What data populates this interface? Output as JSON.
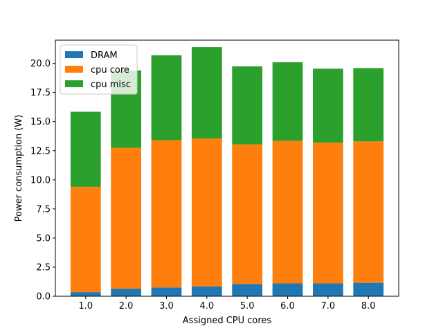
{
  "chart_data": {
    "type": "bar",
    "stacked": true,
    "title": "",
    "xlabel": "Assigned CPU cores",
    "ylabel": "Power consumption (W)",
    "categories": [
      "1.0",
      "2.0",
      "3.0",
      "4.0",
      "5.0",
      "6.0",
      "7.0",
      "8.0"
    ],
    "series": [
      {
        "name": "DRAM",
        "color": "#1f77b4",
        "values": [
          0.35,
          0.65,
          0.75,
          0.85,
          1.05,
          1.1,
          1.1,
          1.15
        ]
      },
      {
        "name": "cpu core",
        "color": "#ff7f0e",
        "values": [
          9.05,
          12.1,
          12.65,
          12.7,
          12.0,
          12.25,
          12.1,
          12.15
        ]
      },
      {
        "name": "cpu misc",
        "color": "#2ca02c",
        "values": [
          6.45,
          6.65,
          7.3,
          7.85,
          6.7,
          6.75,
          6.35,
          6.3
        ]
      }
    ],
    "ylim": [
      0,
      22
    ],
    "yticks": [
      "0.0",
      "2.5",
      "5.0",
      "7.5",
      "10.0",
      "12.5",
      "15.0",
      "17.5",
      "20.0"
    ],
    "grid": false,
    "legend_position": "top-left"
  }
}
